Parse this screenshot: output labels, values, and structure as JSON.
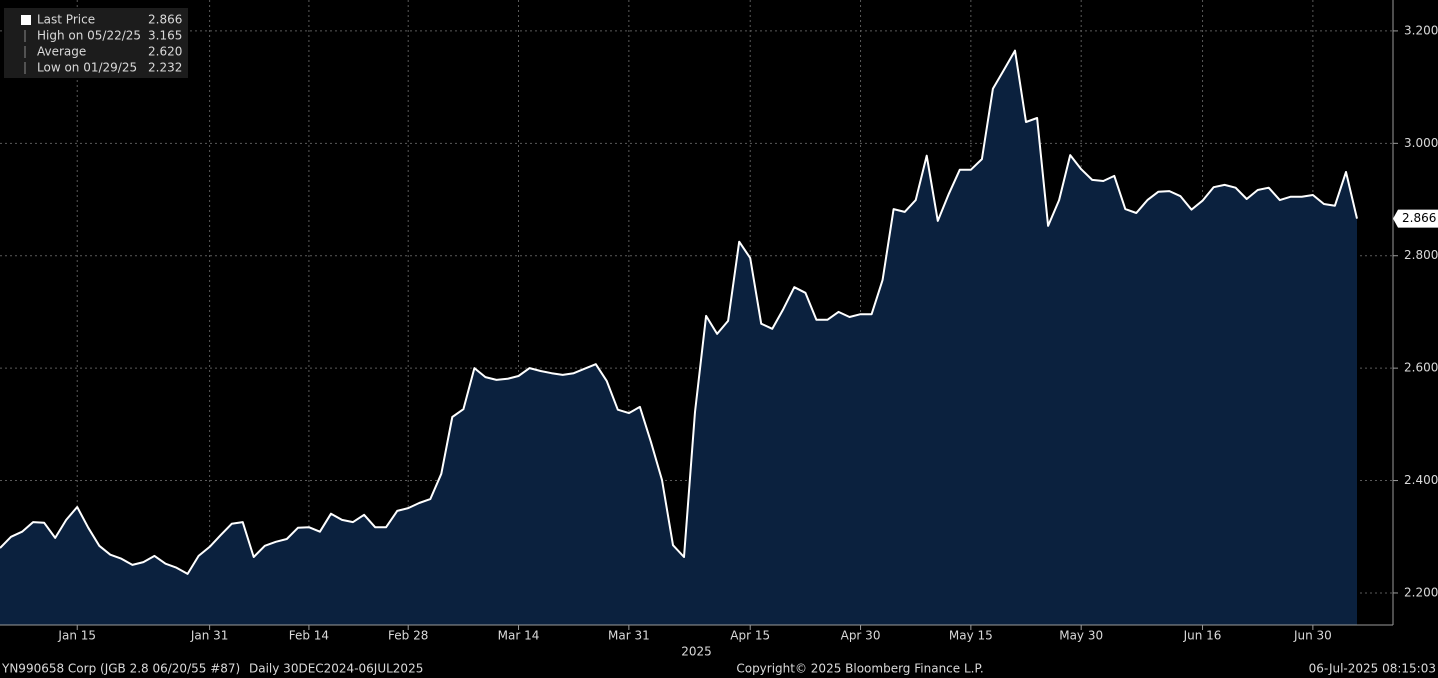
{
  "chart_data": {
    "type": "area",
    "legend": [
      {
        "name": "Last Price",
        "value": "2.866"
      },
      {
        "name": "High on 05/22/25",
        "value": "3.165"
      },
      {
        "name": "Average",
        "value": "2.620"
      },
      {
        "name": "Low on 01/29/25",
        "value": "2.232"
      }
    ],
    "categories": [
      null,
      null,
      null,
      null,
      null,
      null,
      null,
      "Jan 15",
      null,
      null,
      null,
      null,
      null,
      null,
      null,
      null,
      null,
      null,
      null,
      "Jan 31",
      null,
      null,
      null,
      null,
      null,
      null,
      null,
      null,
      "Feb 14",
      null,
      null,
      null,
      null,
      null,
      null,
      null,
      null,
      "Feb 28",
      null,
      null,
      null,
      null,
      null,
      null,
      null,
      null,
      null,
      "Mar 14",
      null,
      null,
      null,
      null,
      null,
      null,
      null,
      null,
      null,
      "Mar 31",
      null,
      null,
      null,
      null,
      null,
      null,
      null,
      null,
      null,
      null,
      "Apr 15",
      null,
      null,
      null,
      null,
      null,
      null,
      null,
      null,
      null,
      "Apr 30",
      null,
      null,
      null,
      null,
      null,
      null,
      null,
      null,
      null,
      "May 15",
      null,
      null,
      null,
      null,
      null,
      null,
      null,
      null,
      null,
      "May 30",
      null,
      null,
      null,
      null,
      null,
      null,
      null,
      null,
      null,
      null,
      "Jun 16",
      null,
      null,
      null,
      null,
      null,
      null,
      null,
      null,
      null,
      "Jun 30",
      null,
      null,
      null,
      null
    ],
    "x_label": "2025",
    "values": [
      2.28,
      2.3,
      2.309,
      2.326,
      2.325,
      2.298,
      2.33,
      2.353,
      2.316,
      2.284,
      2.268,
      2.261,
      2.25,
      2.255,
      2.266,
      2.252,
      2.245,
      2.234,
      2.266,
      2.282,
      2.303,
      2.323,
      2.326,
      2.264,
      2.284,
      2.291,
      2.296,
      2.316,
      2.317,
      2.309,
      2.341,
      2.33,
      2.326,
      2.339,
      2.317,
      2.317,
      2.346,
      2.351,
      2.36,
      2.367,
      2.412,
      2.513,
      2.527,
      2.6,
      2.584,
      2.579,
      2.581,
      2.586,
      2.6,
      2.595,
      2.591,
      2.588,
      2.591,
      2.599,
      2.607,
      2.577,
      2.526,
      2.52,
      2.531,
      2.469,
      2.401,
      2.285,
      2.264,
      2.522,
      2.693,
      2.661,
      2.684,
      2.825,
      2.796,
      2.679,
      2.67,
      2.705,
      2.744,
      2.734,
      2.686,
      2.686,
      2.7,
      2.691,
      2.696,
      2.696,
      2.757,
      2.883,
      2.878,
      2.899,
      2.978,
      2.862,
      2.91,
      2.953,
      2.953,
      2.972,
      3.097,
      3.131,
      3.165,
      3.038,
      3.045,
      2.853,
      2.899,
      2.979,
      2.954,
      2.935,
      2.933,
      2.942,
      2.883,
      2.876,
      2.899,
      2.914,
      2.915,
      2.906,
      2.882,
      2.898,
      2.922,
      2.926,
      2.921,
      2.901,
      2.917,
      2.921,
      2.899,
      2.905,
      2.905,
      2.908,
      2.892,
      2.889,
      2.949,
      2.866
    ],
    "fill_color": "#0b213e",
    "line_color": "#ffffff",
    "ylim": [
      2.143,
      3.255
    ],
    "yticks": [
      {
        "value": 2.2,
        "label": "2.200"
      },
      {
        "value": 2.4,
        "label": "2.400"
      },
      {
        "value": 2.6,
        "label": "2.600"
      },
      {
        "value": 2.8,
        "label": "2.800"
      },
      {
        "value": 3.0,
        "label": "3.000"
      },
      {
        "value": 3.2,
        "label": "3.200"
      }
    ],
    "grid": true,
    "footer": {
      "security": "YN990658 Corp (JGB 2.8 06/20/55 #87)",
      "period": "Daily 30DEC2024-06JUL2025",
      "copyright": "Copyright© 2025 Bloomberg Finance L.P.",
      "timestamp": "06-Jul-2025 08:15:03"
    }
  }
}
